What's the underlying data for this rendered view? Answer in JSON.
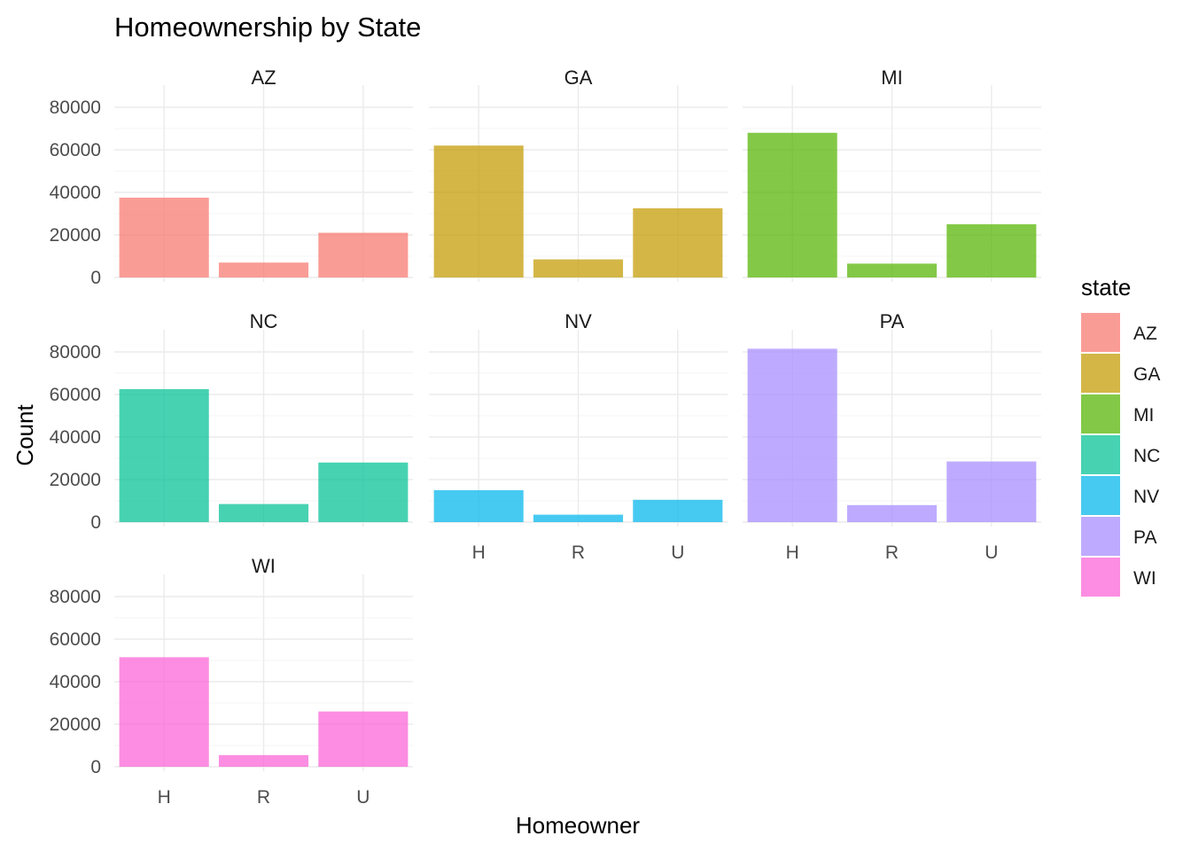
{
  "chart_data": {
    "type": "bar",
    "title": "Homeownership by State",
    "xlabel": "Homeowner",
    "ylabel": "Count",
    "categories": [
      "H",
      "R",
      "U"
    ],
    "ylim": [
      0,
      82000
    ],
    "yticks": [
      0,
      20000,
      40000,
      60000,
      80000
    ],
    "legend_title": "state",
    "legend_position": "right",
    "grid": true,
    "facet_columns": 3,
    "series": [
      {
        "name": "AZ",
        "color": "#F8766D",
        "values": [
          37500,
          7000,
          21000
        ]
      },
      {
        "name": "GA",
        "color": "#C49A00",
        "values": [
          62000,
          8500,
          32500
        ]
      },
      {
        "name": "MI",
        "color": "#53B400",
        "values": [
          68000,
          6500,
          25000
        ]
      },
      {
        "name": "NC",
        "color": "#00C094",
        "values": [
          62500,
          8500,
          28000
        ]
      },
      {
        "name": "NV",
        "color": "#00B6EB",
        "values": [
          15000,
          3500,
          10500
        ]
      },
      {
        "name": "PA",
        "color": "#A58AFF",
        "values": [
          81500,
          8000,
          28500
        ]
      },
      {
        "name": "WI",
        "color": "#FB61D7",
        "values": [
          51500,
          5500,
          26000
        ]
      }
    ],
    "x_axis_labels_on": [
      "NV",
      "PA",
      "WI"
    ],
    "y_axis_labels_on": [
      "AZ",
      "NC",
      "WI"
    ]
  }
}
